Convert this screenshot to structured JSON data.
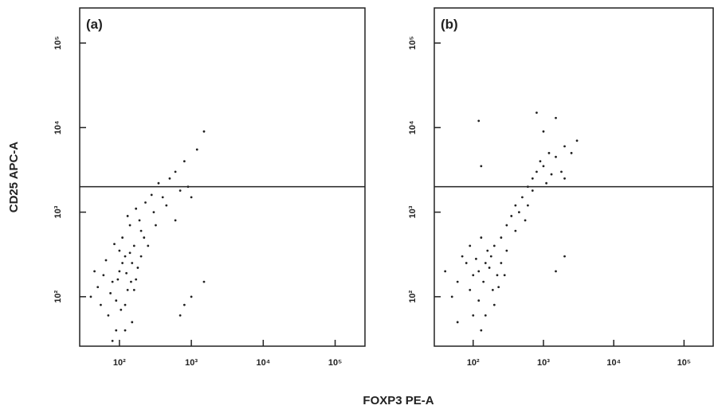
{
  "chart_data": [
    {
      "type": "scatter",
      "panel_label": "(a)",
      "ylabel": "CD25 APC-A",
      "xlabel": "FOXP3 PE-A",
      "color": "#222222",
      "log_x": true,
      "log_y": true,
      "gate_y": 2000,
      "xlim": [
        28,
        260000
      ],
      "ylim": [
        26,
        260000
      ],
      "xticks": [
        {
          "value": 100,
          "label": "10²"
        },
        {
          "value": 1000,
          "label": "10³"
        },
        {
          "value": 10000,
          "label": "10⁴"
        },
        {
          "value": 100000,
          "label": "10⁵"
        }
      ],
      "yticks": [
        {
          "value": 100,
          "label": "10²"
        },
        {
          "value": 1000,
          "label": "10³"
        },
        {
          "value": 10000,
          "label": "10⁴"
        },
        {
          "value": 100000,
          "label": "10⁵"
        }
      ],
      "x": [
        80,
        100,
        120,
        150,
        90,
        130,
        70,
        160,
        110,
        140,
        100,
        60,
        180,
        200,
        120,
        90,
        150,
        75,
        50,
        170,
        130,
        110,
        95,
        140,
        160,
        65,
        85,
        125,
        105,
        145,
        200,
        55,
        40,
        45,
        190,
        220,
        250,
        300,
        400,
        350,
        500,
        600,
        700,
        800,
        900,
        1000,
        1200,
        1500,
        450,
        320,
        600,
        1000,
        1500,
        700,
        800,
        280,
        230,
        170,
        120,
        80
      ],
      "y": [
        150,
        200,
        300,
        250,
        90,
        120,
        60,
        400,
        500,
        700,
        350,
        180,
        220,
        600,
        80,
        40,
        50,
        110,
        130,
        160,
        900,
        250,
        160,
        330,
        120,
        270,
        420,
        190,
        70,
        150,
        300,
        80,
        100,
        200,
        800,
        500,
        400,
        1000,
        1500,
        2200,
        2500,
        3000,
        1800,
        4000,
        2000,
        1500,
        5500,
        9000,
        1200,
        700,
        800,
        100,
        150,
        60,
        80,
        1600,
        1300,
        1100,
        40,
        30
      ]
    },
    {
      "type": "scatter",
      "panel_label": "(b)",
      "color": "#222222",
      "log_x": true,
      "log_y": true,
      "gate_y": 2000,
      "xlim": [
        28,
        260000
      ],
      "ylim": [
        26,
        260000
      ],
      "xticks": [
        {
          "value": 100,
          "label": "10²"
        },
        {
          "value": 1000,
          "label": "10³"
        },
        {
          "value": 10000,
          "label": "10⁴"
        },
        {
          "value": 100000,
          "label": "10⁵"
        }
      ],
      "yticks": [
        {
          "value": 100,
          "label": "10²"
        },
        {
          "value": 1000,
          "label": "10³"
        },
        {
          "value": 10000,
          "label": "10⁴"
        },
        {
          "value": 100000,
          "label": "10⁵"
        }
      ],
      "x": [
        120,
        150,
        180,
        100,
        200,
        140,
        90,
        160,
        130,
        110,
        170,
        80,
        60,
        70,
        220,
        250,
        190,
        120,
        150,
        100,
        200,
        130,
        300,
        350,
        400,
        450,
        500,
        600,
        700,
        800,
        900,
        1000,
        1200,
        1500,
        2000,
        1800,
        2500,
        3000,
        800,
        1500,
        700,
        1100,
        1300,
        600,
        550,
        2000,
        1000,
        400,
        300,
        250,
        120,
        130,
        2000,
        1500,
        50,
        40,
        60,
        280,
        230,
        90
      ],
      "y": [
        200,
        250,
        300,
        180,
        400,
        150,
        120,
        350,
        500,
        280,
        220,
        250,
        150,
        300,
        180,
        500,
        120,
        90,
        60,
        60,
        80,
        40,
        700,
        900,
        1200,
        1000,
        1500,
        2000,
        2500,
        3000,
        4000,
        3500,
        5000,
        4500,
        6000,
        3000,
        5000,
        7000,
        15000,
        13000,
        1800,
        2200,
        2800,
        1200,
        800,
        2500,
        9000,
        600,
        350,
        250,
        12000,
        3500,
        300,
        200,
        100,
        200,
        50,
        180,
        130,
        400
      ]
    }
  ]
}
